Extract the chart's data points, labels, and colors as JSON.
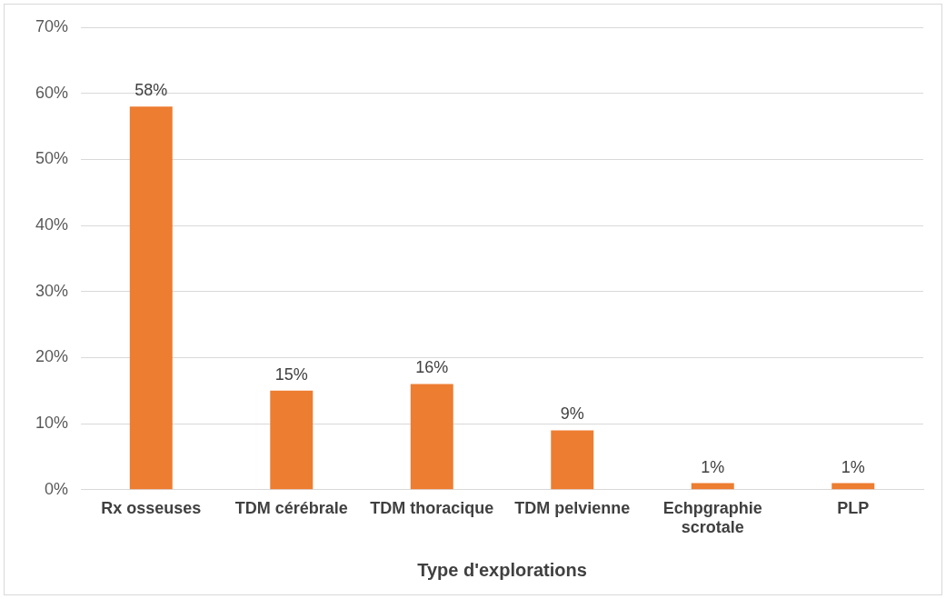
{
  "chart_data": {
    "type": "bar",
    "xlabel": "Type d'explorations",
    "categories": [
      "Rx osseuses",
      "TDM cérébrale",
      "TDM thoracique",
      "TDM pelvienne",
      "Echpgraphie scrotale",
      "PLP"
    ],
    "values": [
      58,
      15,
      16,
      9,
      1,
      1
    ],
    "value_labels": [
      "58%",
      "15%",
      "16%",
      "9%",
      "1%",
      "1%"
    ],
    "color": "#ed7d31",
    "ylim": [
      0,
      70
    ],
    "yticks": [
      {
        "value": 0,
        "label": "0%"
      },
      {
        "value": 10,
        "label": "10%"
      },
      {
        "value": 20,
        "label": "20%"
      },
      {
        "value": 30,
        "label": "30%"
      },
      {
        "value": 40,
        "label": "40%"
      },
      {
        "value": 50,
        "label": "50%"
      },
      {
        "value": 60,
        "label": "60%"
      },
      {
        "value": 70,
        "label": "70%"
      }
    ],
    "grid": "y",
    "legend": false
  }
}
